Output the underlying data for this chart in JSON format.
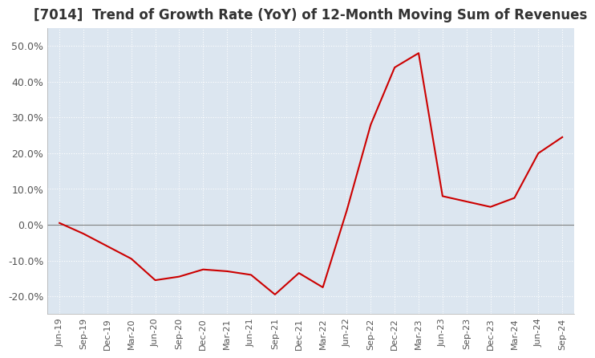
{
  "title": "[7014]  Trend of Growth Rate (YoY) of 12-Month Moving Sum of Revenues",
  "title_fontsize": 12,
  "background_color": "#ffffff",
  "plot_background_color": "#dce6f0",
  "line_color": "#cc0000",
  "grid_color": "#ffffff",
  "zero_line_color": "#808080",
  "tick_label_color": "#555555",
  "ylim": [
    -0.25,
    0.55
  ],
  "yticks": [
    -0.2,
    -0.1,
    0.0,
    0.1,
    0.2,
    0.3,
    0.4,
    0.5
  ],
  "ytick_labels": [
    "-20.0%",
    "-10.0%",
    "0.0%",
    "10.0%",
    "20.0%",
    "30.0%",
    "40.0%",
    "50.0%"
  ],
  "x_labels": [
    "Jun-19",
    "Sep-19",
    "Dec-19",
    "Mar-20",
    "Jun-20",
    "Sep-20",
    "Dec-20",
    "Mar-21",
    "Jun-21",
    "Sep-21",
    "Dec-21",
    "Mar-22",
    "Jun-22",
    "Sep-22",
    "Dec-22",
    "Mar-23",
    "Jun-23",
    "Sep-23",
    "Dec-23",
    "Mar-24",
    "Jun-24",
    "Sep-24"
  ],
  "values": [
    0.005,
    -0.025,
    -0.06,
    -0.095,
    -0.155,
    -0.145,
    -0.125,
    -0.13,
    -0.14,
    -0.195,
    -0.135,
    -0.175,
    0.04,
    0.28,
    0.44,
    0.48,
    0.08,
    0.065,
    0.05,
    0.075,
    0.2,
    0.245
  ]
}
